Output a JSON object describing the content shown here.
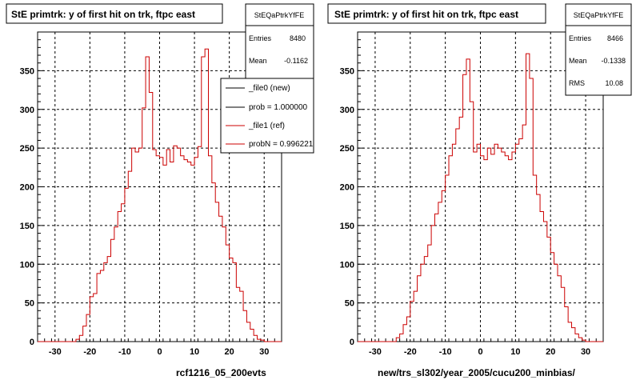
{
  "chart_data": [
    {
      "type": "histogram",
      "title": "StE primtrk: y of first hit on trk, ftpc east",
      "xlabel": "rcf1216_05_200evts",
      "xlim": [
        -35,
        35
      ],
      "ylim": [
        0,
        400
      ],
      "xticks": [
        -30,
        -20,
        -10,
        0,
        10,
        20,
        30
      ],
      "yticks": [
        0,
        50,
        100,
        150,
        200,
        250,
        300,
        350
      ],
      "grid": true,
      "bin_width": 1,
      "bin_start": -35,
      "stats": {
        "name": "StEQaPtrkYfFE",
        "entries_label": "Entries",
        "entries": "8480",
        "mean_label": "Mean",
        "mean": "-0.1162"
      },
      "legend": {
        "placement": "top-right",
        "entries": [
          {
            "label": "_file0 (new)",
            "color": "#000000"
          },
          {
            "label": "prob = 1.000000",
            "color": "#000000"
          },
          {
            "label": "_file1 (ref)",
            "color": "#cc0000"
          },
          {
            "label": "probN = 0.996221",
            "color": "#cc0000"
          }
        ]
      },
      "series": [
        {
          "color": "#cc0000",
          "values": [
            0,
            0,
            0,
            0,
            0,
            0,
            0,
            0,
            0,
            0,
            0,
            3,
            8,
            20,
            35,
            58,
            62,
            88,
            92,
            102,
            110,
            132,
            148,
            168,
            178,
            198,
            220,
            250,
            245,
            250,
            302,
            368,
            322,
            248,
            240,
            238,
            228,
            248,
            232,
            253,
            250,
            240,
            235,
            232,
            228,
            238,
            252,
            368,
            378,
            240,
            205,
            180,
            162,
            148,
            125,
            108,
            102,
            70,
            65,
            40,
            25,
            16,
            8,
            3,
            2,
            0,
            0,
            0,
            0,
            0
          ]
        }
      ]
    },
    {
      "type": "histogram",
      "title": "StE primtrk: y of first hit on trk, ftpc east",
      "xlabel": "new/trs_sl302/year_2005/cucu200_minbias/",
      "xlim": [
        -35,
        35
      ],
      "ylim": [
        0,
        400
      ],
      "xticks": [
        -30,
        -20,
        -10,
        0,
        10,
        20,
        30
      ],
      "yticks": [
        0,
        50,
        100,
        150,
        200,
        250,
        300,
        350
      ],
      "grid": true,
      "bin_width": 1,
      "bin_start": -35,
      "stats": {
        "name": "StEQaPtrkYfFE",
        "entries_label": "Entries",
        "entries": "8466",
        "mean_label": "Mean",
        "mean": "-0.1338",
        "rms_label": "RMS",
        "rms": "10.08"
      },
      "series": [
        {
          "color": "#cc0000",
          "values": [
            0,
            0,
            0,
            0,
            0,
            0,
            0,
            0,
            0,
            0,
            0,
            5,
            10,
            22,
            32,
            52,
            65,
            85,
            100,
            110,
            125,
            150,
            165,
            180,
            195,
            215,
            240,
            255,
            275,
            290,
            345,
            365,
            310,
            245,
            255,
            240,
            235,
            250,
            242,
            255,
            250,
            245,
            240,
            235,
            245,
            255,
            262,
            280,
            372,
            340,
            215,
            190,
            168,
            155,
            135,
            115,
            100,
            85,
            70,
            45,
            25,
            18,
            10,
            5,
            2,
            0,
            0,
            0,
            0,
            0
          ]
        }
      ]
    }
  ]
}
